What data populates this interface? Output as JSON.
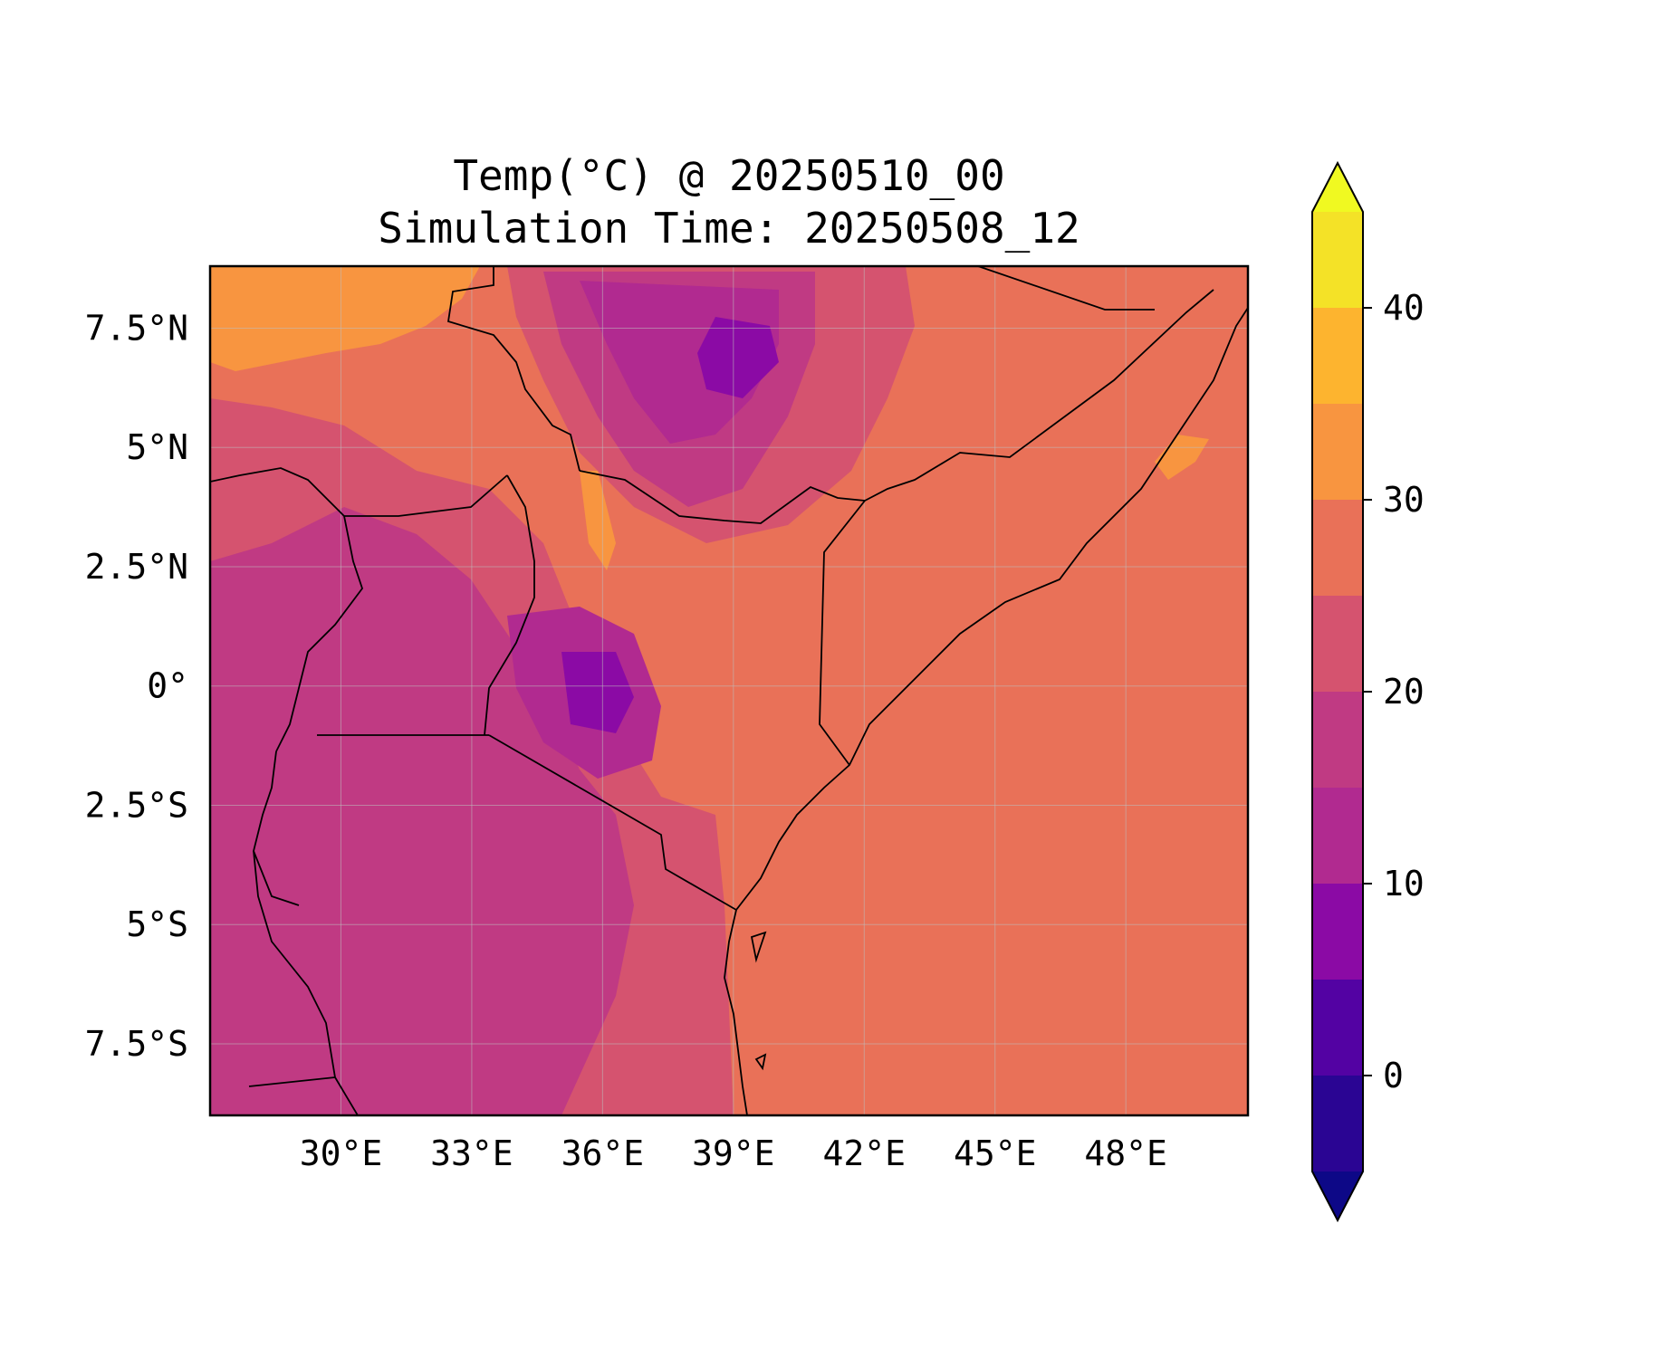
{
  "title": {
    "line1": "Temp(°C) @ 20250510_00",
    "line2": "Simulation Time: 20250508_12"
  },
  "map": {
    "region": "East Africa",
    "projection": "PlateCarree",
    "lon_range": [
      27.0,
      50.8
    ],
    "lat_range": [
      -9.0,
      8.8
    ],
    "gridlines": true,
    "borders": true,
    "coastlines": true
  },
  "axes": {
    "x_ticks": [
      {
        "value": 30,
        "label": "30°E"
      },
      {
        "value": 33,
        "label": "33°E"
      },
      {
        "value": 36,
        "label": "36°E"
      },
      {
        "value": 39,
        "label": "39°E"
      },
      {
        "value": 42,
        "label": "42°E"
      },
      {
        "value": 45,
        "label": "45°E"
      },
      {
        "value": 48,
        "label": "48°E"
      }
    ],
    "y_ticks": [
      {
        "value": 7.5,
        "label": "7.5°N"
      },
      {
        "value": 5,
        "label": "5°N"
      },
      {
        "value": 2.5,
        "label": "2.5°N"
      },
      {
        "value": 0,
        "label": "0°"
      },
      {
        "value": -2.5,
        "label": "2.5°S"
      },
      {
        "value": -5,
        "label": "5°S"
      },
      {
        "value": -7.5,
        "label": "7.5°S"
      }
    ]
  },
  "colorbar": {
    "range": [
      -5,
      45
    ],
    "extend": "both",
    "colormap": "plasma",
    "levels": [
      {
        "from": -5,
        "to": 0,
        "color": "#2a0593"
      },
      {
        "from": 0,
        "to": 5,
        "color": "#5302a3"
      },
      {
        "from": 5,
        "to": 10,
        "color": "#8b0aa5"
      },
      {
        "from": 10,
        "to": 15,
        "color": "#b12a90"
      },
      {
        "from": 15,
        "to": 20,
        "color": "#c03a83"
      },
      {
        "from": 20,
        "to": 25,
        "color": "#d5536f"
      },
      {
        "from": 25,
        "to": 30,
        "color": "#e97158"
      },
      {
        "from": 30,
        "to": 35,
        "color": "#f89540"
      },
      {
        "from": 35,
        "to": 40,
        "color": "#fdb42f"
      },
      {
        "from": 40,
        "to": 45,
        "color": "#f4e227"
      }
    ],
    "under_color": "#0d0887",
    "over_color": "#f0f921",
    "ticks": [
      {
        "value": 0,
        "label": "0"
      },
      {
        "value": 10,
        "label": "10"
      },
      {
        "value": 20,
        "label": "20"
      },
      {
        "value": 30,
        "label": "30"
      },
      {
        "value": 40,
        "label": "40"
      }
    ]
  }
}
